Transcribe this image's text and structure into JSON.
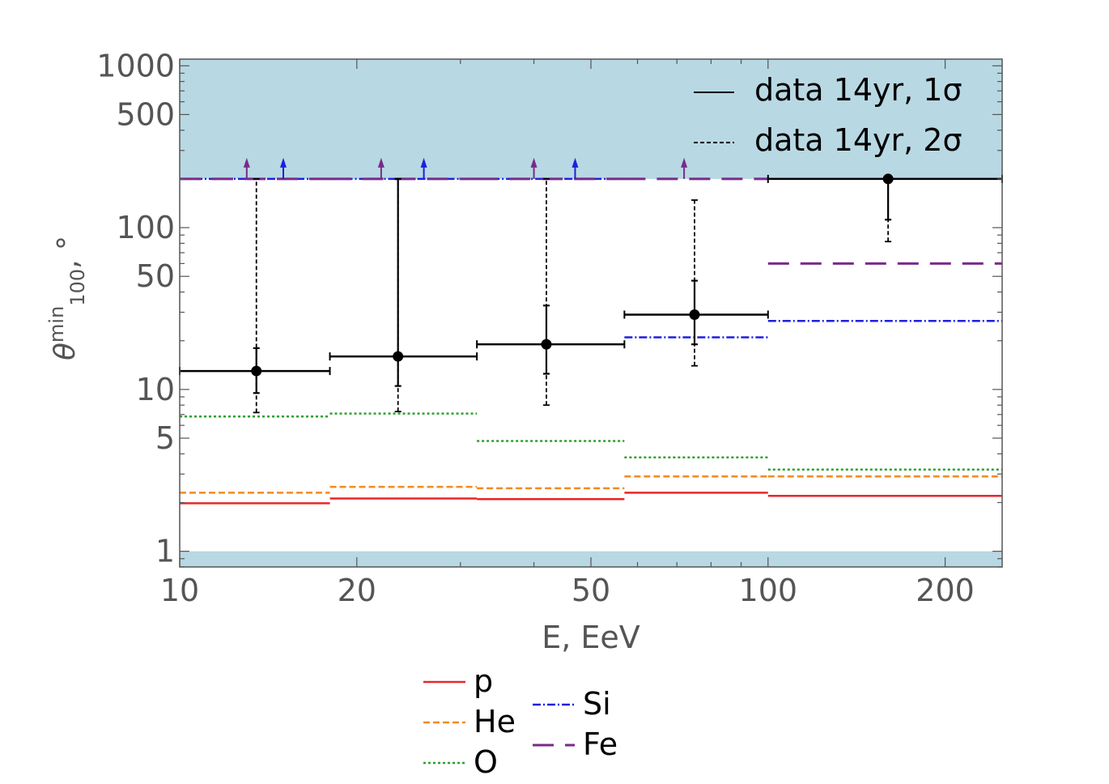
{
  "chart_data": {
    "type": "line",
    "title": "",
    "xlabel": "E, EeV",
    "ylabel": {
      "base": "θ",
      "sup": "min",
      "sub": "100",
      "suffix": ", °"
    },
    "xscale": "log",
    "yscale": "log",
    "xlim": [
      10,
      250
    ],
    "ylim": [
      0.8,
      1100
    ],
    "xticks": [
      10,
      20,
      50,
      100,
      200
    ],
    "xtick_labels": [
      "10",
      "20",
      "50",
      "100",
      "200"
    ],
    "yticks": [
      1,
      5,
      10,
      50,
      100,
      500,
      1000
    ],
    "ytick_labels": [
      "1",
      "5",
      "10",
      "50",
      "100",
      "500",
      "1000"
    ],
    "shaded_regions": [
      {
        "y_from": 200,
        "y_to": 1100,
        "color": "#b8d8e3"
      },
      {
        "y_from": 0.8,
        "y_to": 1,
        "color": "#b8d8e3"
      }
    ],
    "bin_edges": [
      10,
      18,
      32,
      57,
      100,
      250
    ],
    "series": [
      {
        "name": "p",
        "color": "#e8262a",
        "dash": "solid",
        "values": [
          1.98,
          2.12,
          2.1,
          2.3,
          2.2
        ]
      },
      {
        "name": "He",
        "color": "#f28a22",
        "dash": "dash-short",
        "values": [
          2.3,
          2.5,
          2.45,
          2.9,
          2.9
        ]
      },
      {
        "name": "O",
        "color": "#2ca02c",
        "dash": "dot",
        "values": [
          6.8,
          7.1,
          4.8,
          3.8,
          3.2
        ]
      },
      {
        "name": "Si",
        "color": "#1f1fdf",
        "dash": "dashdot",
        "values": [
          200,
          200,
          200,
          21,
          26.5
        ],
        "lower_limit_bins": [
          0,
          1,
          2
        ]
      },
      {
        "name": "Fe",
        "color": "#7a2a8a",
        "dash": "dash-long",
        "values": [
          200,
          200,
          200,
          200,
          60
        ],
        "lower_limit_bins": [
          0,
          1,
          2,
          3
        ]
      }
    ],
    "limit_arrows": [
      {
        "series": "Fe",
        "x": 13
      },
      {
        "series": "Si",
        "x": 15
      },
      {
        "series": "Fe",
        "x": 22
      },
      {
        "series": "Si",
        "x": 26
      },
      {
        "series": "Fe",
        "x": 40
      },
      {
        "series": "Si",
        "x": 47
      },
      {
        "series": "Fe",
        "x": 72
      }
    ],
    "data_points": [
      {
        "x": 13.5,
        "y": 13,
        "x_low": 10,
        "x_high": 18,
        "err1_low": 9.5,
        "err1_high": 18,
        "err2_low": 7.2,
        "err2_high": 200
      },
      {
        "x": 23.5,
        "y": 16,
        "x_low": 18,
        "x_high": 32,
        "err1_low": 10.5,
        "err1_high": 200,
        "err2_low": 7.3,
        "err2_high": 200
      },
      {
        "x": 42,
        "y": 19,
        "x_low": 32,
        "x_high": 57,
        "err1_low": 12.5,
        "err1_high": 33,
        "err2_low": 8,
        "err2_high": 200
      },
      {
        "x": 75,
        "y": 29,
        "x_low": 57,
        "x_high": 100,
        "err1_low": 19,
        "err1_high": 47,
        "err2_low": 14,
        "err2_high": 148
      },
      {
        "x": 160,
        "y": 200,
        "x_low": 100,
        "x_high": 250,
        "err1_low": 112,
        "err1_high": 200,
        "err2_low": 82,
        "err2_high": 200
      }
    ],
    "legend_inset": [
      {
        "label": "data 14yr, 1σ",
        "style": "solid"
      },
      {
        "label": "data 14yr, 2σ",
        "style": "dashed"
      }
    ],
    "legend_placement": "top-right inside and below plot",
    "grid": false
  }
}
